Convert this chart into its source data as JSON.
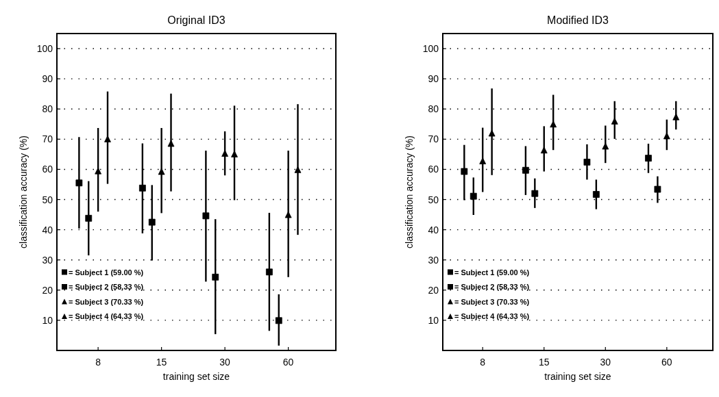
{
  "chart_data": [
    {
      "type": "scatter",
      "title": "Original ID3",
      "xlabel": "training set size",
      "ylabel": "classification accuracy (%)",
      "categories": [
        "8",
        "15",
        "30",
        "60"
      ],
      "ylim": [
        0,
        105
      ],
      "yticks": [
        10,
        20,
        30,
        40,
        50,
        60,
        70,
        80,
        90,
        100
      ],
      "grid": "y",
      "legend": "bottom left",
      "series": [
        {
          "name": "= Subject 1 (59.00 %)",
          "color": "#000000",
          "marker": "square",
          "values": [
            55.5,
            53.8,
            44.6,
            26.0
          ],
          "errors": [
            [
              40.4,
              70.7
            ],
            [
              38.8,
              68.6
            ],
            [
              22.8,
              66.2
            ],
            [
              6.5,
              45.6
            ]
          ]
        },
        {
          "name": "= Subject 2 (58.33 %)",
          "color": "#000000",
          "marker": "square",
          "values": [
            43.8,
            42.5,
            24.3,
            9.9
          ],
          "errors": [
            [
              31.5,
              56.1
            ],
            [
              29.8,
              54.8
            ],
            [
              5.4,
              43.5
            ],
            [
              1.6,
              18.6
            ]
          ]
        },
        {
          "name": "= Subject 3 (70.33 %)",
          "color": "#000000",
          "marker": "triangle",
          "values": [
            59.5,
            59.3,
            65.3,
            45.0
          ],
          "errors": [
            [
              46.0,
              73.7
            ],
            [
              45.5,
              73.7
            ],
            [
              58.0,
              72.6
            ],
            [
              24.3,
              66.2
            ]
          ]
        },
        {
          "name": "= Subject 4 (64.33 %)",
          "color": "#000000",
          "marker": "triangle",
          "values": [
            70.1,
            68.6,
            65.1,
            59.9
          ],
          "errors": [
            [
              55.2,
              85.8
            ],
            [
              52.7,
              85.1
            ],
            [
              49.8,
              81.1
            ],
            [
              38.3,
              81.6
            ]
          ]
        }
      ]
    },
    {
      "type": "scatter",
      "title": "Modified ID3",
      "xlabel": "training set size",
      "ylabel": "classification accuracy (%)",
      "categories": [
        "8",
        "15",
        "30",
        "60"
      ],
      "ylim": [
        0,
        105
      ],
      "yticks": [
        10,
        20,
        30,
        40,
        50,
        60,
        70,
        80,
        90,
        100
      ],
      "grid": "y",
      "legend": "bottom left",
      "series": [
        {
          "name": "= Subject 1 (59.00 %)",
          "color": "#000000",
          "marker": "square",
          "values": [
            59.3,
            59.7,
            62.4,
            63.7
          ],
          "errors": [
            [
              49.8,
              68.1
            ],
            [
              51.5,
              67.7
            ],
            [
              56.6,
              68.3
            ],
            [
              58.8,
              68.5
            ]
          ]
        },
        {
          "name": "= Subject 2 (58.33 %)",
          "color": "#000000",
          "marker": "square",
          "values": [
            51.1,
            52.0,
            51.7,
            53.4
          ],
          "errors": [
            [
              44.9,
              57.3
            ],
            [
              47.2,
              57.0
            ],
            [
              46.8,
              56.6
            ],
            [
              48.9,
              57.7
            ]
          ]
        },
        {
          "name": "= Subject 3 (70.33 %)",
          "color": "#000000",
          "marker": "triangle",
          "values": [
            62.8,
            66.4,
            67.7,
            71.1
          ],
          "errors": [
            [
              52.5,
              73.8
            ],
            [
              59.3,
              74.3
            ],
            [
              62.1,
              74.5
            ],
            [
              66.4,
              76.5
            ]
          ]
        },
        {
          "name": "= Subject 4 (64.33 %)",
          "color": "#000000",
          "marker": "triangle",
          "values": [
            72.0,
            75.0,
            76.0,
            77.4
          ],
          "errors": [
            [
              58.1,
              86.8
            ],
            [
              66.4,
              84.7
            ],
            [
              70.1,
              82.6
            ],
            [
              73.2,
              82.6
            ]
          ]
        }
      ]
    }
  ]
}
